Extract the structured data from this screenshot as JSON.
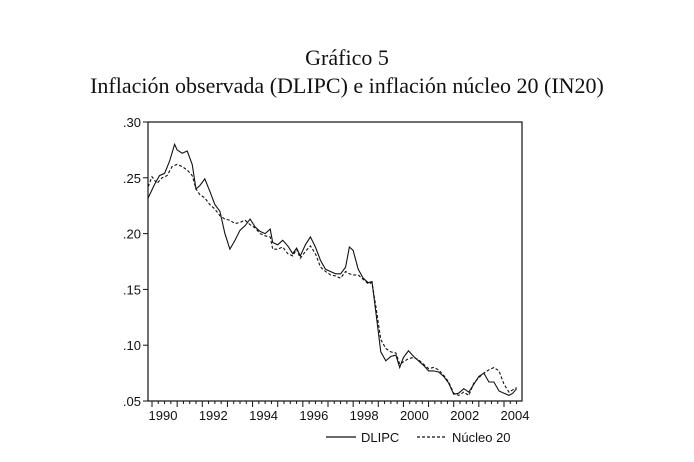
{
  "chart_data": {
    "type": "line",
    "title": "Gráfico 5",
    "subtitle": "Inflación observada (DLIPC) e inflación núcleo 20 (IN20)",
    "xlabel": "",
    "ylabel": "",
    "xlim": [
      1990.0,
      2004.7
    ],
    "ylim": [
      0.05,
      0.3
    ],
    "yticks": [
      ".30",
      ".25",
      ".20",
      ".15",
      ".10",
      ".05"
    ],
    "ytick_values": [
      0.3,
      0.25,
      0.2,
      0.15,
      0.1,
      0.05
    ],
    "xticks": [
      "1990",
      "1992",
      "1994",
      "1996",
      "1998",
      "2000",
      "2002",
      "2004"
    ],
    "grid": false,
    "legend_position": "bottom-right",
    "series": [
      {
        "name": "DLIPC",
        "style": "solid",
        "x": [
          1989.85,
          1990.1,
          1990.3,
          1990.5,
          1990.7,
          1990.9,
          1991.0,
          1991.2,
          1991.4,
          1991.6,
          1991.75,
          1991.9,
          1992.1,
          1992.3,
          1992.5,
          1992.7,
          1992.9,
          1993.1,
          1993.3,
          1993.5,
          1993.7,
          1993.9,
          1994.1,
          1994.3,
          1994.5,
          1994.7,
          1994.8,
          1995.0,
          1995.2,
          1995.4,
          1995.6,
          1995.75,
          1995.9,
          1996.1,
          1996.3,
          1996.5,
          1996.7,
          1996.9,
          1997.1,
          1997.3,
          1997.5,
          1997.7,
          1997.85,
          1998.0,
          1998.2,
          1998.4,
          1998.6,
          1998.75,
          1998.9,
          1999.1,
          1999.3,
          1999.5,
          1999.7,
          1999.85,
          2000.0,
          2000.2,
          2000.4,
          2000.6,
          2000.8,
          2001.0,
          2001.2,
          2001.4,
          2001.6,
          2001.8,
          2002.0,
          2002.2,
          2002.4,
          2002.6,
          2002.8,
          2003.0,
          2003.2,
          2003.4,
          2003.6,
          2003.8,
          2004.0,
          2004.2,
          2004.35,
          2004.5
        ],
        "y": [
          0.232,
          0.244,
          0.252,
          0.254,
          0.265,
          0.28,
          0.275,
          0.272,
          0.274,
          0.262,
          0.24,
          0.243,
          0.249,
          0.238,
          0.226,
          0.22,
          0.2,
          0.186,
          0.194,
          0.203,
          0.207,
          0.213,
          0.206,
          0.202,
          0.2,
          0.204,
          0.192,
          0.19,
          0.194,
          0.189,
          0.182,
          0.187,
          0.18,
          0.19,
          0.197,
          0.188,
          0.176,
          0.168,
          0.166,
          0.164,
          0.164,
          0.17,
          0.188,
          0.185,
          0.168,
          0.16,
          0.156,
          0.157,
          0.13,
          0.094,
          0.086,
          0.09,
          0.091,
          0.08,
          0.089,
          0.095,
          0.09,
          0.086,
          0.082,
          0.077,
          0.077,
          0.076,
          0.072,
          0.066,
          0.056,
          0.057,
          0.061,
          0.058,
          0.065,
          0.072,
          0.075,
          0.067,
          0.067,
          0.059,
          0.057,
          0.055,
          0.057,
          0.061
        ]
      },
      {
        "name": "Núcleo 20",
        "style": "dashed",
        "x": [
          1989.85,
          1990.0,
          1990.2,
          1990.4,
          1990.6,
          1990.8,
          1991.0,
          1991.2,
          1991.4,
          1991.6,
          1991.75,
          1991.9,
          1992.1,
          1992.3,
          1992.5,
          1992.7,
          1992.9,
          1993.1,
          1993.3,
          1993.5,
          1993.7,
          1993.9,
          1994.1,
          1994.3,
          1994.5,
          1994.7,
          1994.8,
          1995.0,
          1995.2,
          1995.4,
          1995.6,
          1995.75,
          1995.9,
          1996.1,
          1996.3,
          1996.5,
          1996.7,
          1996.9,
          1997.1,
          1997.3,
          1997.5,
          1997.7,
          1997.85,
          1998.0,
          1998.2,
          1998.4,
          1998.6,
          1998.75,
          1998.9,
          1999.1,
          1999.3,
          1999.5,
          1999.7,
          1999.85,
          2000.0,
          2000.2,
          2000.4,
          2000.6,
          2000.8,
          2001.0,
          2001.2,
          2001.4,
          2001.6,
          2001.8,
          2002.0,
          2002.2,
          2002.4,
          2002.6,
          2002.8,
          2003.0,
          2003.2,
          2003.4,
          2003.6,
          2003.8,
          2004.0,
          2004.2,
          2004.35,
          2004.5
        ],
        "y": [
          0.242,
          0.251,
          0.245,
          0.25,
          0.252,
          0.26,
          0.262,
          0.26,
          0.257,
          0.252,
          0.24,
          0.235,
          0.232,
          0.226,
          0.222,
          0.216,
          0.213,
          0.212,
          0.209,
          0.21,
          0.212,
          0.208,
          0.205,
          0.2,
          0.198,
          0.197,
          0.186,
          0.186,
          0.188,
          0.182,
          0.18,
          0.186,
          0.178,
          0.184,
          0.189,
          0.182,
          0.17,
          0.166,
          0.163,
          0.162,
          0.16,
          0.166,
          0.164,
          0.163,
          0.163,
          0.159,
          0.155,
          0.156,
          0.135,
          0.105,
          0.097,
          0.094,
          0.093,
          0.083,
          0.085,
          0.088,
          0.089,
          0.087,
          0.083,
          0.079,
          0.08,
          0.078,
          0.073,
          0.067,
          0.057,
          0.055,
          0.058,
          0.055,
          0.066,
          0.071,
          0.075,
          0.078,
          0.08,
          0.077,
          0.065,
          0.058,
          0.06,
          0.062
        ]
      }
    ]
  },
  "legend": {
    "solid_label": "DLIPC",
    "dashed_label": "Núcleo 20"
  }
}
